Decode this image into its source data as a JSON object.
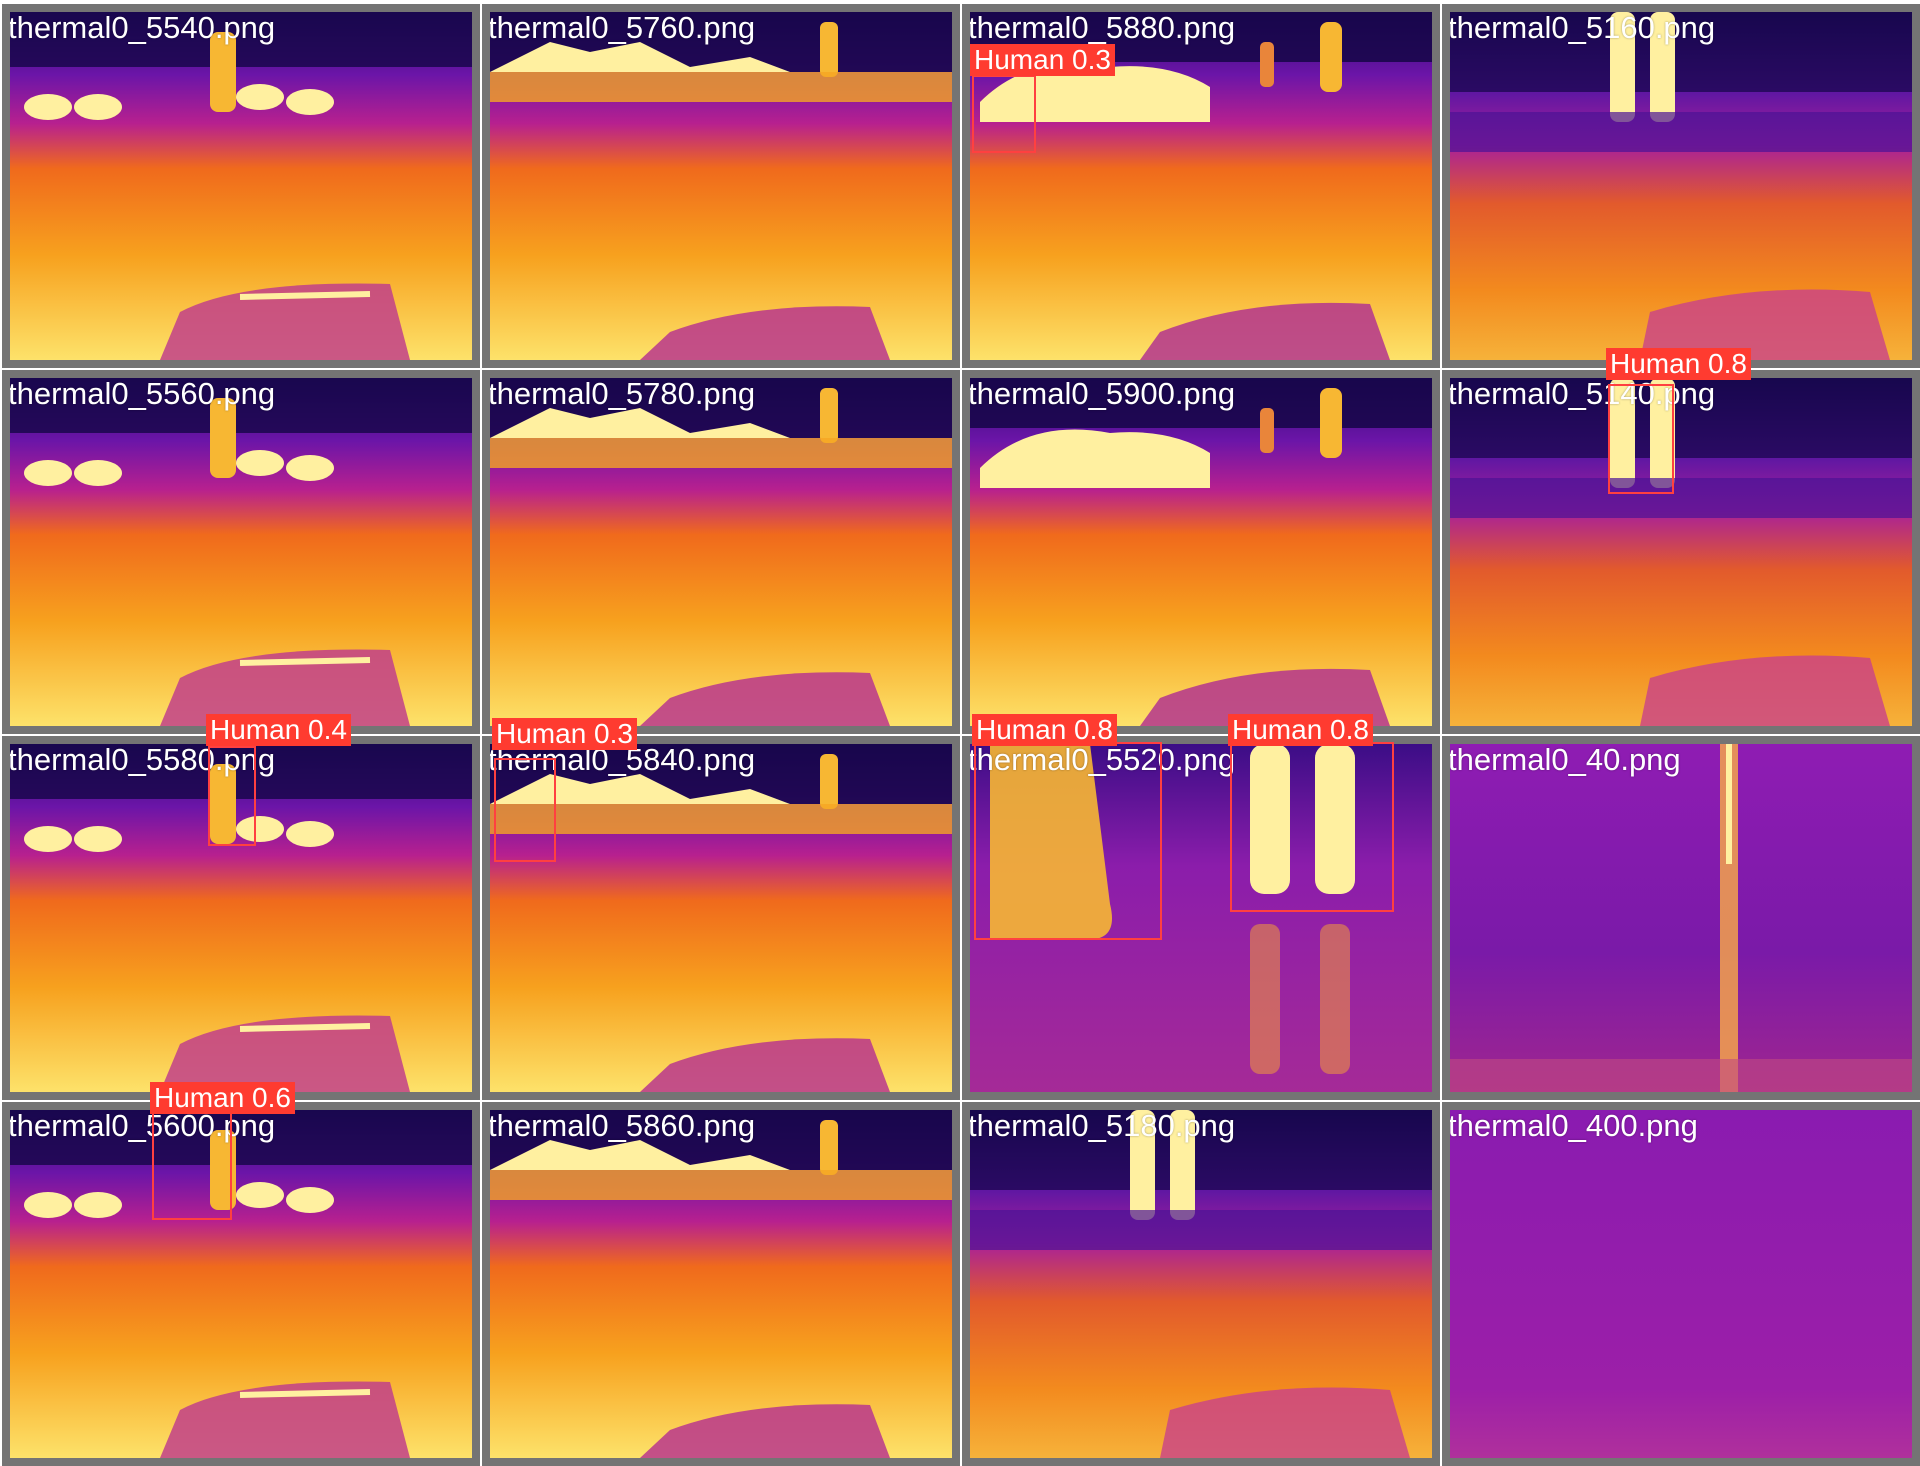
{
  "tiles": [
    {
      "file": "thermal0_5540.png",
      "scene": "street-person-cars"
    },
    {
      "file": "thermal0_5760.png",
      "scene": "street-distant-person"
    },
    {
      "file": "thermal0_5880.png",
      "scene": "street-two-people"
    },
    {
      "file": "thermal0_5160.png",
      "scene": "legs-near"
    },
    {
      "file": "thermal0_5560.png",
      "scene": "street-person-cars"
    },
    {
      "file": "thermal0_5780.png",
      "scene": "street-distant-person"
    },
    {
      "file": "thermal0_5900.png",
      "scene": "street-parked-car"
    },
    {
      "file": "thermal0_5140.png",
      "scene": "legs-near"
    },
    {
      "file": "thermal0_5580.png",
      "scene": "street-person-cars"
    },
    {
      "file": "thermal0_5840.png",
      "scene": "street-distant-person"
    },
    {
      "file": "thermal0_5520.png",
      "scene": "close-boots"
    },
    {
      "file": "thermal0_40.png",
      "scene": "indoor-pole"
    },
    {
      "file": "thermal0_5600.png",
      "scene": "street-person-cars"
    },
    {
      "file": "thermal0_5860.png",
      "scene": "street-distant-person"
    },
    {
      "file": "thermal0_5180.png",
      "scene": "street-legs"
    },
    {
      "file": "thermal0_400.png",
      "scene": "uniform"
    }
  ],
  "detections": [
    {
      "tile": 2,
      "label": "Human 0.3"
    },
    {
      "tile": 7,
      "label": "Human 0.8"
    },
    {
      "tile": 8,
      "label": "Human 0.4"
    },
    {
      "tile": 9,
      "label": "Human 0.3"
    },
    {
      "tile": 10,
      "label": "Human 0.8"
    },
    {
      "tile": 10,
      "label": "Human 0.8"
    },
    {
      "tile": 12,
      "label": "Human 0.6"
    }
  ],
  "colors": {
    "border": "#747474",
    "box": "#ff4040",
    "tag": "#ff3b30",
    "text": "#ffffff"
  }
}
